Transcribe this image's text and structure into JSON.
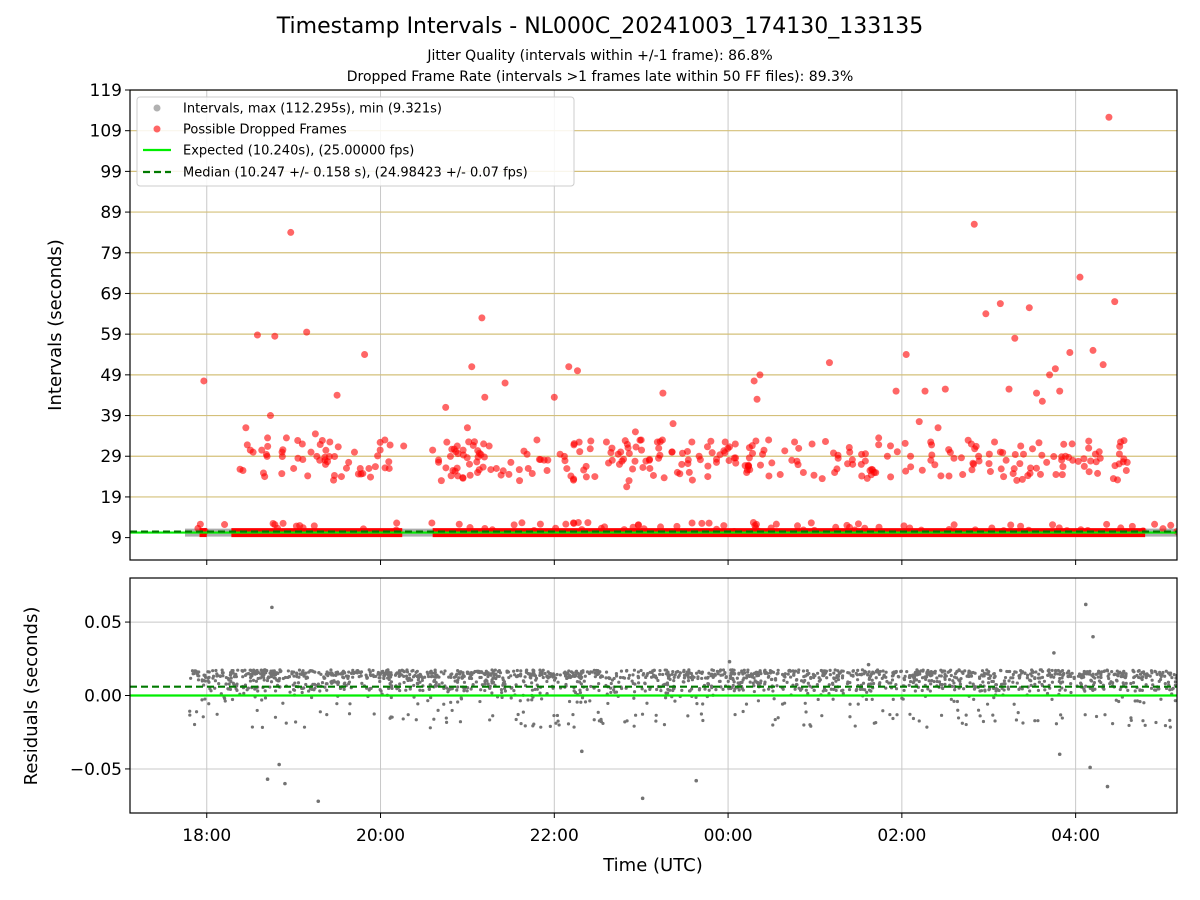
{
  "header": {
    "title": "Timestamp Intervals - NL000C_20241003_174130_133135",
    "subtitle_1": "Jitter Quality (intervals within +/-1 frame): 86.8%",
    "subtitle_2": "Dropped Frame Rate (intervals >1 frames late within 50 FF files): 89.3%"
  },
  "colors": {
    "intervals": "#9e9e9e",
    "dropped": "#ff0000",
    "expected": "#00ee00",
    "median": "#007a00",
    "hline": "#d4c07a",
    "grid": "#c8c8c8",
    "residual": "#737373"
  },
  "chart_data": [
    {
      "type": "scatter",
      "ylabel": "Intervals (seconds)",
      "xlim": [
        "17:07",
        "05:10"
      ],
      "ylim": [
        3.5,
        119
      ],
      "yticks": [
        9,
        19,
        29,
        39,
        49,
        59,
        69,
        79,
        89,
        99,
        109,
        119
      ],
      "xticks": [
        "18:00",
        "20:00",
        "22:00",
        "00:00",
        "02:00",
        "04:00"
      ],
      "grid": "vertical",
      "legend_position": "top-left",
      "legend": [
        "Intervals, max (112.295s), min (9.321s)",
        "Possible Dropped Frames",
        "Expected (10.240s), (25.00000 fps)",
        "Median (10.247 +/- 0.158 s), (24.98423 +/- 0.07 fps)"
      ],
      "expected": 10.24,
      "median": 10.247,
      "intervals_range": [
        9.321,
        112.295
      ],
      "dropped_frames": [
        [
          "17:58",
          47.5
        ],
        [
          "18:23",
          25.8
        ],
        [
          "18:25",
          25.5
        ],
        [
          "18:27",
          36.0
        ],
        [
          "18:28",
          31.8
        ],
        [
          "18:32",
          30.0
        ],
        [
          "18:35",
          58.8
        ],
        [
          "18:38",
          30.5
        ],
        [
          "18:40",
          24.0
        ],
        [
          "18:42",
          33.5
        ],
        [
          "18:44",
          39.0
        ],
        [
          "18:47",
          58.5
        ],
        [
          "18:52",
          30.0
        ],
        [
          "18:55",
          33.5
        ],
        [
          "18:58",
          84.0
        ],
        [
          "19:00",
          26.0
        ],
        [
          "19:03",
          28.5
        ],
        [
          "19:06",
          32.0
        ],
        [
          "19:09",
          59.5
        ],
        [
          "19:12",
          30.0
        ],
        [
          "19:15",
          34.5
        ],
        [
          "19:18",
          28.0
        ],
        [
          "19:22",
          27.0
        ],
        [
          "19:25",
          32.5
        ],
        [
          "19:30",
          44.0
        ],
        [
          "19:33",
          24.0
        ],
        [
          "19:38",
          27.5
        ],
        [
          "19:42",
          30.0
        ],
        [
          "19:46",
          26.0
        ],
        [
          "19:49",
          54.0
        ],
        [
          "19:52",
          26.0
        ],
        [
          "20:03",
          33.0
        ],
        [
          "20:06",
          26.0
        ],
        [
          "20:16",
          31.5
        ],
        [
          "20:36",
          30.5
        ],
        [
          "20:42",
          23.0
        ],
        [
          "20:45",
          41.0
        ],
        [
          "20:50",
          25.5
        ],
        [
          "20:53",
          31.5
        ],
        [
          "20:57",
          30.5
        ],
        [
          "21:00",
          36.0
        ],
        [
          "21:03",
          51.0
        ],
        [
          "21:07",
          25.0
        ],
        [
          "21:10",
          63.0
        ],
        [
          "21:12",
          43.5
        ],
        [
          "21:15",
          31.5
        ],
        [
          "21:20",
          26.0
        ],
        [
          "21:26",
          47.0
        ],
        [
          "21:30",
          27.5
        ],
        [
          "21:36",
          23.0
        ],
        [
          "21:42",
          26.0
        ],
        [
          "21:48",
          33.0
        ],
        [
          "21:55",
          25.5
        ],
        [
          "22:00",
          43.5
        ],
        [
          "22:04",
          29.5
        ],
        [
          "22:10",
          51.0
        ],
        [
          "22:16",
          50.0
        ],
        [
          "22:22",
          26.5
        ],
        [
          "22:28",
          24.0
        ],
        [
          "22:36",
          32.5
        ],
        [
          "22:40",
          28.0
        ],
        [
          "22:45",
          27.0
        ],
        [
          "22:50",
          21.5
        ],
        [
          "22:56",
          35.0
        ],
        [
          "23:00",
          33.0
        ],
        [
          "23:06",
          26.0
        ],
        [
          "23:12",
          28.5
        ],
        [
          "23:15",
          44.5
        ],
        [
          "23:22",
          37.0
        ],
        [
          "23:28",
          27.0
        ],
        [
          "23:35",
          32.5
        ],
        [
          "23:40",
          29.0
        ],
        [
          "23:46",
          24.0
        ],
        [
          "23:52",
          27.5
        ],
        [
          "23:58",
          32.5
        ],
        [
          "00:05",
          32.0
        ],
        [
          "00:14",
          26.5
        ],
        [
          "00:18",
          47.5
        ],
        [
          "00:20",
          43.0
        ],
        [
          "00:22",
          49.0
        ],
        [
          "00:28",
          33.0
        ],
        [
          "00:36",
          24.5
        ],
        [
          "00:44",
          28.0
        ],
        [
          "00:52",
          25.0
        ],
        [
          "00:58",
          32.0
        ],
        [
          "01:05",
          23.5
        ],
        [
          "01:10",
          52.0
        ],
        [
          "01:16",
          28.5
        ],
        [
          "01:24",
          30.0
        ],
        [
          "01:32",
          27.0
        ],
        [
          "01:38",
          25.5
        ],
        [
          "01:44",
          33.5
        ],
        [
          "01:50",
          29.0
        ],
        [
          "01:56",
          45.0
        ],
        [
          "02:03",
          54.0
        ],
        [
          "02:06",
          29.0
        ],
        [
          "02:12",
          37.5
        ],
        [
          "02:16",
          45.0
        ],
        [
          "02:20",
          28.0
        ],
        [
          "02:25",
          36.0
        ],
        [
          "02:30",
          45.5
        ],
        [
          "02:36",
          28.5
        ],
        [
          "02:42",
          24.5
        ],
        [
          "02:48",
          32.0
        ],
        [
          "02:50",
          86.0
        ],
        [
          "02:53",
          29.0
        ],
        [
          "02:58",
          64.0
        ],
        [
          "03:04",
          32.5
        ],
        [
          "03:08",
          66.5
        ],
        [
          "03:12",
          28.0
        ],
        [
          "03:14",
          45.5
        ],
        [
          "03:18",
          58.0
        ],
        [
          "03:24",
          29.5
        ],
        [
          "03:28",
          65.5
        ],
        [
          "03:33",
          44.5
        ],
        [
          "03:37",
          42.5
        ],
        [
          "03:40",
          27.5
        ],
        [
          "03:42",
          49.0
        ],
        [
          "03:46",
          50.5
        ],
        [
          "03:49",
          45.0
        ],
        [
          "03:53",
          29.0
        ],
        [
          "03:56",
          54.5
        ],
        [
          "03:58",
          28.0
        ],
        [
          "04:03",
          73.0
        ],
        [
          "04:06",
          26.5
        ],
        [
          "04:09",
          31.0
        ],
        [
          "04:12",
          55.0
        ],
        [
          "04:17",
          28.5
        ],
        [
          "04:19",
          51.5
        ],
        [
          "04:23",
          112.3
        ],
        [
          "04:27",
          67.0
        ],
        [
          "04:31",
          32.5
        ],
        [
          "04:35",
          25.5
        ]
      ]
    },
    {
      "type": "scatter",
      "xlabel": "Time (UTC)",
      "ylabel": "Residuals (seconds)",
      "xlim": [
        "17:07",
        "05:10"
      ],
      "ylim": [
        -0.08,
        0.08
      ],
      "yticks": [
        0.05,
        0.0,
        -0.05
      ],
      "ytick_labels": [
        "0.05",
        "0.00",
        "−0.05"
      ],
      "xticks": [
        "18:00",
        "20:00",
        "22:00",
        "00:00",
        "02:00",
        "04:00"
      ],
      "grid": "both",
      "expected_residual": 0.0,
      "median_residual": 0.006,
      "residual_outliers": [
        [
          "18:45",
          0.06
        ],
        [
          "19:17",
          -0.072
        ],
        [
          "18:42",
          -0.057
        ],
        [
          "18:50",
          -0.047
        ],
        [
          "18:54",
          -0.06
        ],
        [
          "23:01",
          -0.07
        ],
        [
          "23:38",
          -0.058
        ],
        [
          "22:19",
          -0.038
        ],
        [
          "04:07",
          0.062
        ],
        [
          "04:12",
          0.04
        ],
        [
          "04:10",
          -0.049
        ],
        [
          "04:22",
          -0.062
        ],
        [
          "03:45",
          0.029
        ],
        [
          "03:49",
          -0.04
        ],
        [
          "00:01",
          0.023
        ],
        [
          "01:37",
          0.021
        ]
      ]
    }
  ],
  "axes": {
    "top_ylabel": "Intervals (seconds)",
    "bottom_ylabel": "Residuals (seconds)",
    "xlabel": "Time (UTC)"
  }
}
